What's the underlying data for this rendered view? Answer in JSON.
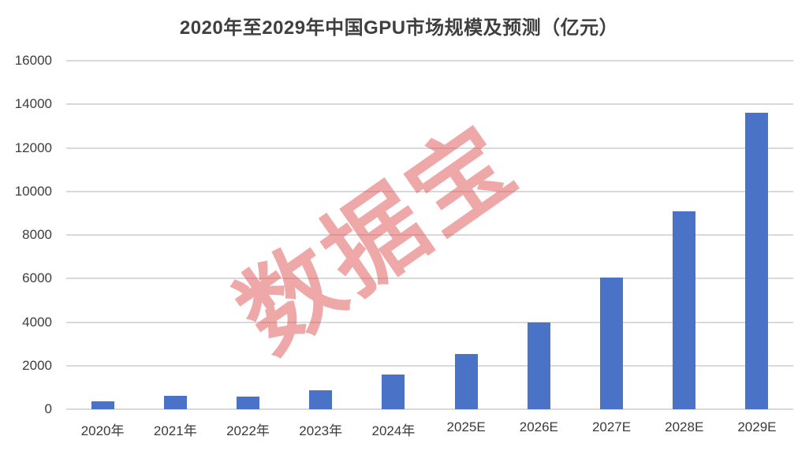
{
  "page": {
    "background_color": "#ffffff"
  },
  "watermark": {
    "text": "数据宝",
    "color": "rgba(222, 82, 82, 0.5)"
  },
  "chart_data": {
    "type": "bar",
    "title": "2020年至2029年中国GPU市场规模及预测（亿元）",
    "unit": "亿元",
    "categories": [
      "2020年",
      "2021年",
      "2022年",
      "2023年",
      "2024年",
      "2025E",
      "2026E",
      "2027E",
      "2028E",
      "2029E"
    ],
    "values": [
      350,
      600,
      590,
      870,
      1590,
      2550,
      3980,
      6050,
      9100,
      13600
    ],
    "xlabel": "",
    "ylabel": "",
    "ylim": [
      0,
      16000
    ],
    "yticks": [
      0,
      2000,
      4000,
      6000,
      8000,
      10000,
      12000,
      14000,
      16000
    ],
    "grid": true,
    "legend": false,
    "bar_color": "#4a72c6",
    "gridline_color": "#d9d9d9",
    "tick_label_color": "#3d3d3d",
    "title_color": "#3f3f3f"
  }
}
